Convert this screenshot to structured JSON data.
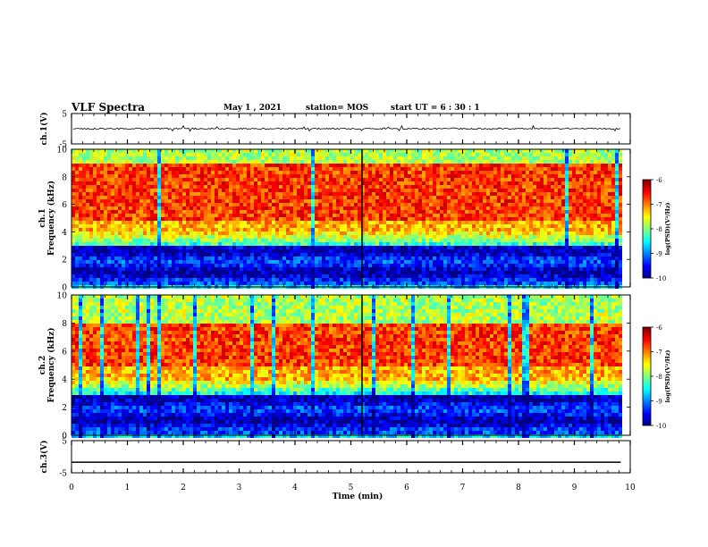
{
  "header": {
    "title": "VLF Spectra",
    "date": "May 1 , 2021",
    "station": "station= MOS",
    "start": "start UT = 6 : 30 : 1"
  },
  "chart_data": [
    {
      "type": "line",
      "panel": "ch1-waveform",
      "ylabel": "ch.1(V)",
      "ylim": [
        -5,
        5
      ],
      "yticks": [
        "5",
        "-5"
      ],
      "x": [
        0,
        1,
        2,
        3,
        4,
        5,
        6,
        7,
        8,
        9,
        9.83
      ],
      "series": [
        {
          "values": [
            0,
            0,
            0,
            0,
            0,
            0,
            0,
            0,
            0,
            0,
            0
          ]
        }
      ]
    },
    {
      "type": "heatmap",
      "panel": "ch1-spectrogram",
      "ylabel": "ch.1 Frequency (kHz)",
      "ylim": [
        0,
        10
      ],
      "yticks": [
        "0",
        "2",
        "4",
        "6",
        "8",
        "10"
      ],
      "xlim": [
        0,
        9.83
      ],
      "colorbar": {
        "label": "log(PSD)(V²/Hz)",
        "range": [
          -10,
          -6
        ],
        "ticks": [
          "-6",
          "-7",
          "-8",
          "-9",
          "-10"
        ]
      }
    },
    {
      "type": "heatmap",
      "panel": "ch2-spectrogram",
      "ylabel": "ch.2 Frequency (kHz)",
      "ylim": [
        0,
        10
      ],
      "yticks": [
        "0",
        "2",
        "4",
        "6",
        "8",
        "10"
      ],
      "xlim": [
        0,
        9.83
      ],
      "colorbar": {
        "label": "log(PSD)(V²/Hz)",
        "range": [
          -10,
          -6
        ],
        "ticks": [
          "-6",
          "-7",
          "-8",
          "-9",
          "-10"
        ]
      }
    },
    {
      "type": "line",
      "panel": "ch3-waveform",
      "ylabel": "ch.3(V)",
      "ylim": [
        -5,
        5
      ],
      "yticks": [
        "5",
        "-5"
      ],
      "x": [
        0,
        9.83
      ],
      "series": [
        {
          "values": [
            -1.7,
            -1.7
          ]
        }
      ]
    }
  ],
  "xaxis": {
    "label": "Time (min)",
    "ticks": [
      "0",
      "1",
      "2",
      "3",
      "4",
      "5",
      "6",
      "7",
      "8",
      "9",
      "10"
    ],
    "xlim": [
      0,
      10
    ]
  }
}
